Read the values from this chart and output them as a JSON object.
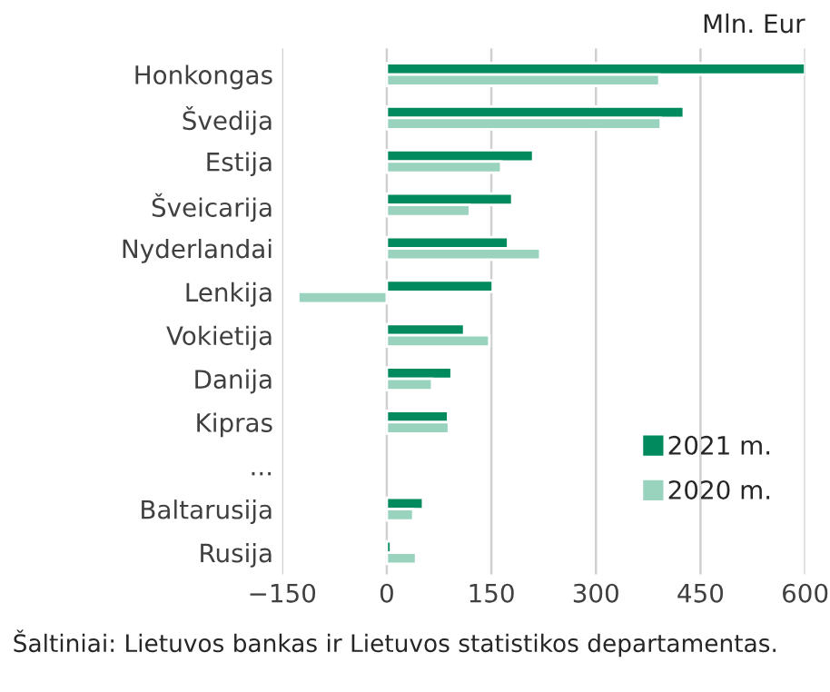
{
  "chart_data": {
    "type": "bar",
    "orientation": "horizontal",
    "xlabel": "Mln. Eur",
    "categories": [
      "Honkongas",
      "Švedija",
      "Estija",
      "Šveicarija",
      "Nyderlandai",
      "Lenkija",
      "Vokietija",
      "Danija",
      "Kipras",
      "...",
      "Baltarusija",
      "Rusija"
    ],
    "series": [
      {
        "name": "2021 m.",
        "color": "#008a5e",
        "values": [
          600,
          426,
          210,
          180,
          174,
          152,
          111,
          93,
          88,
          null,
          52,
          6
        ]
      },
      {
        "name": "2020 m.",
        "color": "#99d3bd",
        "values": [
          391,
          393,
          164,
          119,
          220,
          -127,
          147,
          65,
          89,
          null,
          38,
          42
        ]
      }
    ],
    "xlim": [
      -150,
      600
    ],
    "xticks": [
      {
        "value": -150,
        "label": "−150"
      },
      0,
      150,
      300,
      450,
      600
    ],
    "grid": "x",
    "legend": "bottom right",
    "annotations": [
      "Šaltiniai: Lietuvos bankas ir Lietuvos statistikos departamentas."
    ]
  }
}
